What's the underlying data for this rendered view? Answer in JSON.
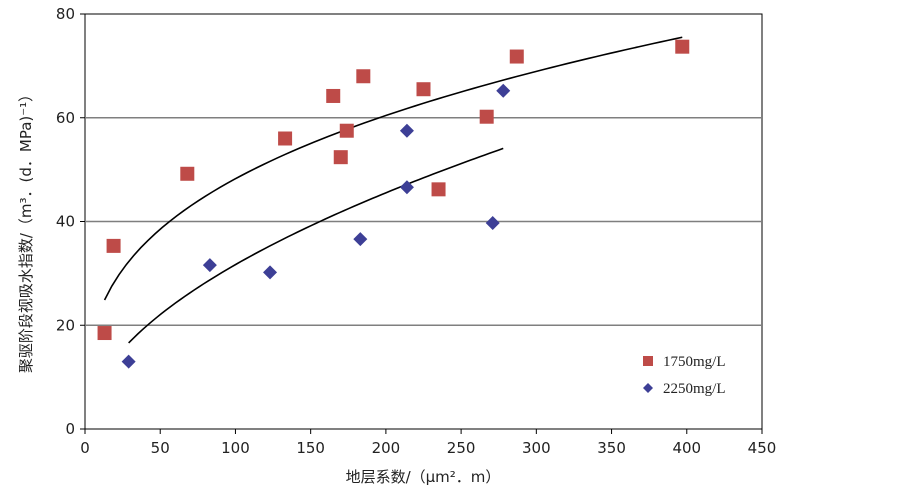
{
  "chart_data": {
    "type": "scatter",
    "title": "",
    "xlabel": "地层系数/（μm²．m）",
    "ylabel": "聚驱阶段视吸水指数/（m³．(d．MPa)⁻¹）",
    "xlim": [
      0,
      450
    ],
    "ylim": [
      0,
      80
    ],
    "xticks": [
      0,
      50,
      100,
      150,
      200,
      250,
      300,
      350,
      400,
      450
    ],
    "yticks": [
      0,
      20,
      40,
      60,
      80
    ],
    "grid": "horizontal",
    "legend_position": "bottom-right",
    "series": [
      {
        "name": "1750mg/L",
        "marker": "square",
        "color": "#be4b48",
        "points": [
          [
            13,
            18.5
          ],
          [
            19,
            35.3
          ],
          [
            68,
            49.2
          ],
          [
            133,
            56
          ],
          [
            165,
            64.2
          ],
          [
            170,
            52.4
          ],
          [
            174,
            57.5
          ],
          [
            185,
            68
          ],
          [
            225,
            65.5
          ],
          [
            235,
            46.2
          ],
          [
            267,
            60.2
          ],
          [
            287,
            71.8
          ],
          [
            397,
            73.7
          ]
        ],
        "trend": {
          "type": "power",
          "a": 10.8,
          "b": 0.325,
          "x_range": [
            13,
            397
          ]
        }
      },
      {
        "name": "2250mg/L",
        "marker": "diamond",
        "color": "#3d3f96",
        "points": [
          [
            29,
            13
          ],
          [
            83,
            31.6
          ],
          [
            123,
            30.2
          ],
          [
            183,
            36.6
          ],
          [
            214,
            57.5
          ],
          [
            214,
            46.6
          ],
          [
            271,
            39.7
          ],
          [
            278,
            65.2
          ]
        ],
        "trend": {
          "type": "power",
          "a": 2.85,
          "b": 0.523,
          "x_range": [
            29,
            278
          ]
        }
      }
    ]
  }
}
